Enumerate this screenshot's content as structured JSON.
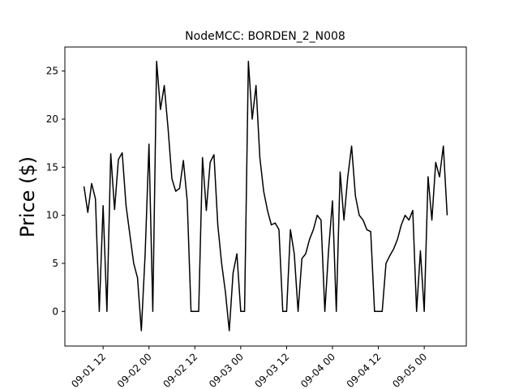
{
  "chart_data": {
    "type": "line",
    "title": "NodeMCC: BORDEN_2_N008",
    "y_label": "Price ($)",
    "x": [
      "09-01 07",
      "09-01 08",
      "09-01 09",
      "09-01 10",
      "09-01 11",
      "09-01 12",
      "09-01 13",
      "09-01 14",
      "09-01 15",
      "09-01 16",
      "09-01 17",
      "09-01 18",
      "09-01 19",
      "09-01 20",
      "09-01 21",
      "09-01 22",
      "09-01 23",
      "09-02 00",
      "09-02 01",
      "09-02 02",
      "09-02 03",
      "09-02 04",
      "09-02 05",
      "09-02 06",
      "09-02 07",
      "09-02 08",
      "09-02 09",
      "09-02 10",
      "09-02 11",
      "09-02 12",
      "09-02 13",
      "09-02 14",
      "09-02 15",
      "09-02 16",
      "09-02 17",
      "09-02 18",
      "09-02 19",
      "09-02 20",
      "09-02 21",
      "09-02 22",
      "09-02 23",
      "09-03 00",
      "09-03 01",
      "09-03 02",
      "09-03 03",
      "09-03 04",
      "09-03 05",
      "09-03 06",
      "09-03 07",
      "09-03 08",
      "09-03 09",
      "09-03 10",
      "09-03 11",
      "09-03 12",
      "09-03 13",
      "09-03 14",
      "09-03 15",
      "09-03 16",
      "09-03 17",
      "09-03 18",
      "09-03 19",
      "09-03 20",
      "09-03 21",
      "09-03 22",
      "09-03 23",
      "09-04 00",
      "09-04 01",
      "09-04 02",
      "09-04 03",
      "09-04 04",
      "09-04 05",
      "09-04 06",
      "09-04 07",
      "09-04 08",
      "09-04 09",
      "09-04 10",
      "09-04 11",
      "09-04 12",
      "09-04 13",
      "09-04 14",
      "09-04 15",
      "09-04 16",
      "09-04 17",
      "09-04 18",
      "09-04 19",
      "09-04 20",
      "09-04 21",
      "09-04 22",
      "09-04 23",
      "09-05 00",
      "09-05 01",
      "09-05 02",
      "09-05 03",
      "09-05 04",
      "09-05 05",
      "09-05 06"
    ],
    "series": [
      {
        "color": "#000000",
        "values": [
          13,
          10.3,
          13.3,
          11.7,
          0,
          11,
          0,
          16.4,
          10.6,
          15.8,
          16.5,
          11,
          8,
          5,
          3.5,
          -2,
          6,
          17.4,
          0,
          26,
          21,
          23.5,
          19,
          13.8,
          12.5,
          12.8,
          15.7,
          11.5,
          0,
          0,
          0,
          16,
          10.5,
          15.5,
          16.3,
          9,
          5,
          2,
          -2,
          4,
          6,
          0,
          0,
          26,
          20,
          23.5,
          16,
          12.5,
          10.5,
          9,
          9.2,
          8.5,
          0,
          0,
          8.5,
          6,
          0,
          5.5,
          6,
          7.5,
          8.5,
          10,
          9.5,
          0,
          6.5,
          11.5,
          0,
          14.5,
          9.5,
          14,
          17.2,
          12,
          10,
          9.5,
          8.5,
          8.3,
          0,
          0,
          0,
          5,
          5.8,
          6.5,
          7.5,
          9,
          10,
          9.5,
          10.5,
          0,
          6.3,
          0,
          14,
          9.5,
          15.5,
          14,
          17.2,
          10
        ]
      }
    ],
    "xlim": [
      "09-01 02",
      "09-05 11"
    ],
    "xticks": [
      "09-01 12",
      "09-02 00",
      "09-02 12",
      "09-03 00",
      "09-03 12",
      "09-04 00",
      "09-04 12",
      "09-05 00"
    ],
    "ylim": [
      -3.6,
      27.5
    ],
    "yticks": [
      0,
      5,
      10,
      15,
      20,
      25
    ]
  }
}
